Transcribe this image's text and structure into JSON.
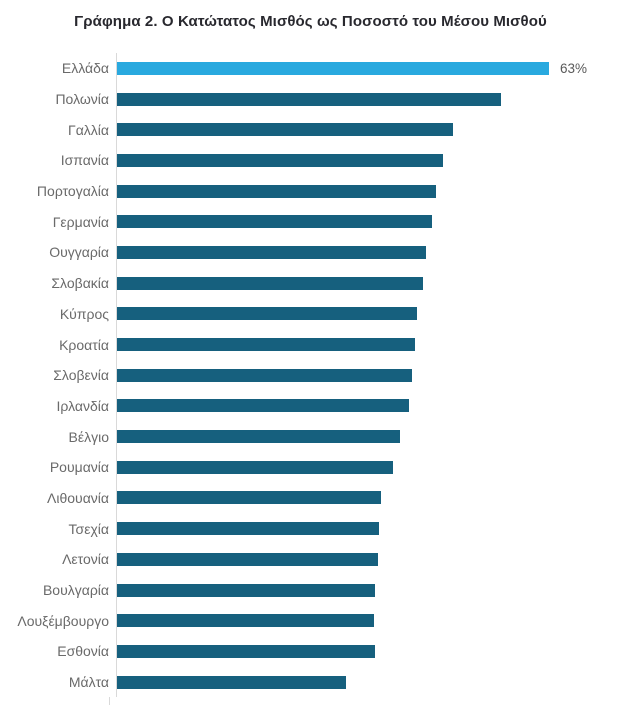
{
  "title": "Γράφημα 2. Ο Κατώτατος Μισθός ως Ποσοστό του Μέσου Μισθού",
  "colors": {
    "bar": "#16607e",
    "highlight_bar": "#29a9df",
    "label_text": "#6a6a6a",
    "title_text": "#28282e",
    "axis_line": "#d9d9d9"
  },
  "chart_data": {
    "type": "bar",
    "orientation": "horizontal",
    "title": "Γράφημα 2. Ο Κατώτατος Μισθός ως Ποσοστό του Μέσου Μισθού",
    "xlabel": "",
    "ylabel": "",
    "xlim": [
      0,
      70
    ],
    "grid": false,
    "legend": false,
    "highlight_index": 0,
    "categories": [
      "Ελλάδα",
      "Πολωνία",
      "Γαλλία",
      "Ισπανία",
      "Πορτογαλία",
      "Γερμανία",
      "Ουγγαρία",
      "Σλοβακία",
      "Κύπρος",
      "Κροατία",
      "Σλοβενία",
      "Ιρλανδία",
      "Βέλγιο",
      "Ρουμανία",
      "Λιθουανία",
      "Τσεχία",
      "Λετονία",
      "Βουλγαρία",
      "Λουξέμβουργο",
      "Εσθονία",
      "Μάλτα"
    ],
    "values": [
      63,
      56,
      49,
      47.5,
      46.5,
      46,
      45,
      44.6,
      43.8,
      43.5,
      43,
      42.6,
      41.3,
      40.2,
      38.5,
      38.2,
      38,
      37.6,
      37.5,
      37.6,
      33.4
    ],
    "data_labels": [
      "63%",
      "",
      "",
      "",
      "",
      "",
      "",
      "",
      "",
      "",
      "",
      "",
      "",
      "",
      "",
      "",
      "",
      "",
      "",
      "",
      ""
    ]
  }
}
